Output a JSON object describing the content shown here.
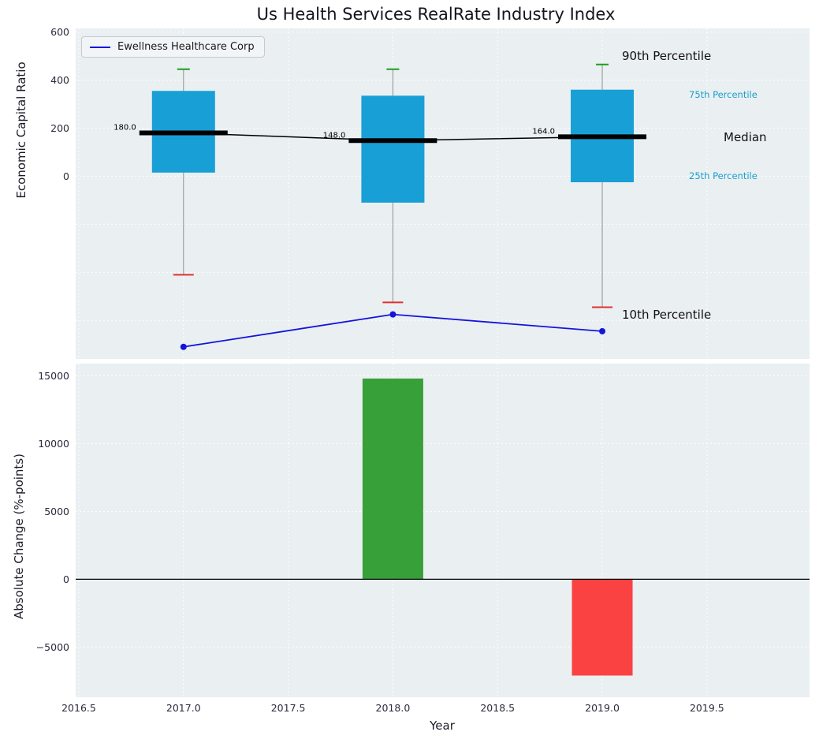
{
  "figure": {
    "title": "Us Health Services RealRate Industry Index",
    "plot_background": "#eaeff2",
    "grid_color": "#ffffff"
  },
  "legend": {
    "series_label": "Ewellness Healthcare Corp",
    "line_color": "#1414db"
  },
  "annotations": {
    "p90": "90th Percentile",
    "p75": "75th Percentile",
    "median": "Median",
    "p25": "25th Percentile",
    "p10": "10th Percentile"
  },
  "top_chart": {
    "ylabel": "Economic Capital Ratio",
    "ytick_values": [
      600,
      400,
      200,
      0
    ],
    "ytick_labels": [
      "600",
      "400",
      "200",
      "0"
    ],
    "ygrid_values": [
      600,
      400,
      200,
      0,
      -200,
      -400,
      -600
    ],
    "ylim": [
      -760,
      615
    ]
  },
  "bottom_chart": {
    "ylabel": "Absolute Change (%-points)",
    "xlabel": "Year",
    "ytick_values": [
      15000,
      10000,
      5000,
      0,
      -5000
    ],
    "ytick_labels": [
      "15000",
      "10000",
      "5000",
      "0",
      "−5000"
    ],
    "xtick_values": [
      2016.5,
      2017.0,
      2017.5,
      2018.0,
      2018.5,
      2019.0,
      2019.5
    ],
    "xtick_labels": [
      "2016.5",
      "2017.0",
      "2017.5",
      "2018.0",
      "2018.5",
      "2019.0",
      "2019.5"
    ],
    "ylim": [
      -8700,
      15900
    ],
    "xlim": [
      2016.485,
      2019.99
    ]
  },
  "style": {
    "box_color": "#18a0d6",
    "median_color": "#000000",
    "whisker_color": "#909090",
    "cap_top_color": "#1c9e1c",
    "cap_bottom_color": "#e03030",
    "line_color": "#1414db",
    "bar_up_color": "#38a038",
    "bar_down_color": "#fb4242",
    "tick_color": "#2b2b3d"
  },
  "chart_data": [
    {
      "type": "box",
      "title": "Us Health Services RealRate Industry Index",
      "ylabel": "Economic Capital Ratio",
      "x": [
        2017,
        2018,
        2019
      ],
      "boxes": [
        {
          "year": 2017,
          "p10": -410,
          "p25": 15,
          "median": 180.0,
          "p75": 355,
          "p90": 445
        },
        {
          "year": 2018,
          "p10": -525,
          "p25": -110,
          "median": 148.0,
          "p75": 335,
          "p90": 445
        },
        {
          "year": 2019,
          "p10": -545,
          "p25": -25,
          "median": 164.0,
          "p75": 360,
          "p90": 465
        }
      ],
      "median_labels": [
        "180.0",
        "148.0",
        "164.0"
      ],
      "series": [
        {
          "name": "Ewellness Healthcare Corp",
          "x": [
            2017,
            2018,
            2019
          ],
          "values": [
            -710,
            -575,
            -645
          ]
        }
      ],
      "legend_position": "upper left",
      "grid": true
    },
    {
      "type": "bar",
      "ylabel": "Absolute Change (%-points)",
      "xlabel": "Year",
      "x": [
        2018,
        2019
      ],
      "values": [
        14800,
        -7100
      ],
      "bar_colors": [
        "#38a038",
        "#fb4242"
      ],
      "zero_line": true,
      "grid": true
    }
  ]
}
